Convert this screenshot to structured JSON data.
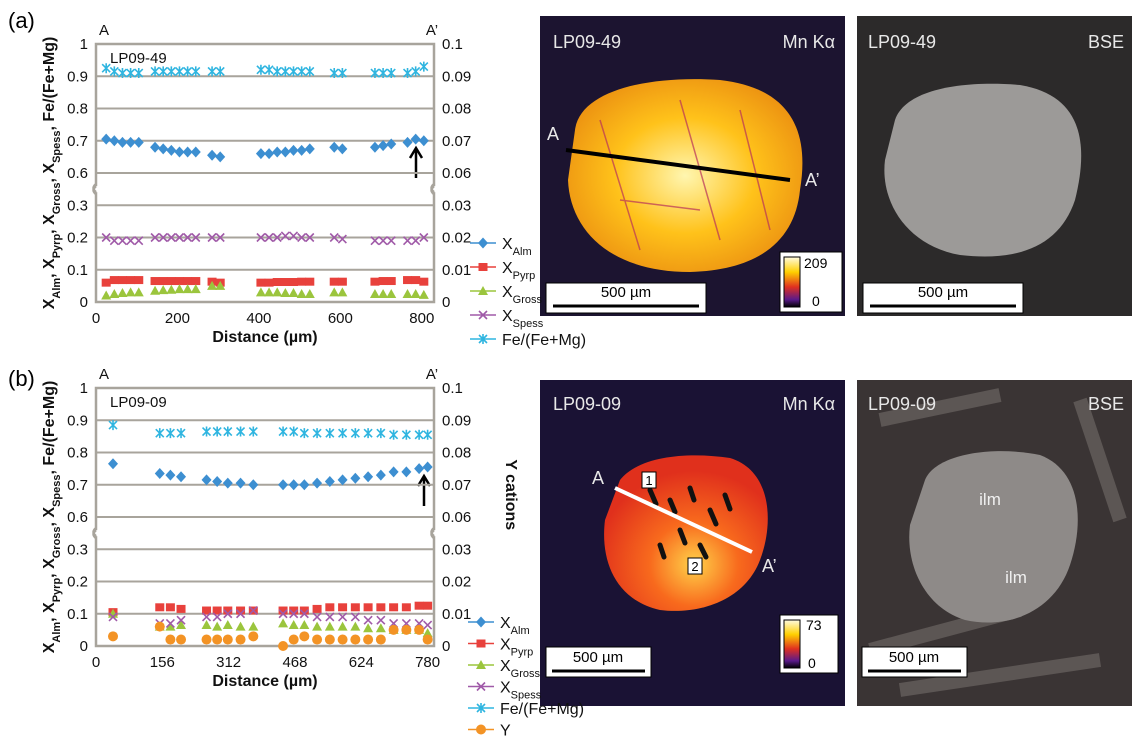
{
  "panel_labels": [
    "(a)",
    "(b)"
  ],
  "chart_data": [
    {
      "type": "scatter",
      "title": "LP09-49",
      "ends": [
        "A",
        "A’"
      ],
      "xlabel": "Distance (µm)",
      "ylabel": [
        [
          "X",
          "Alm"
        ],
        [
          ", X",
          "Pyrp"
        ],
        [
          ", X",
          "Gross"
        ],
        [
          ", X",
          "Spess"
        ],
        [
          ", Fe/(Fe+Mg)"
        ]
      ],
      "xlim": [
        0,
        830
      ],
      "xticks": [
        0,
        200,
        400,
        600,
        800
      ],
      "ylim": [
        0,
        1
      ],
      "ybreak": [
        0.35,
        0.55
      ],
      "yticks": [
        0,
        0.1,
        0.2,
        0.3,
        0.6,
        0.7,
        0.8,
        0.9,
        1
      ],
      "y2lim": [
        0,
        0.1
      ],
      "y2break": [
        0.035,
        0.055
      ],
      "y2ticks": [
        0,
        0.01,
        0.02,
        0.03,
        0.06,
        0.07,
        0.08,
        0.09,
        0.1
      ],
      "grid": true,
      "x": [
        25,
        45,
        65,
        85,
        105,
        145,
        165,
        185,
        205,
        225,
        245,
        285,
        305,
        405,
        425,
        445,
        465,
        485,
        505,
        525,
        585,
        605,
        685,
        705,
        725,
        765,
        785,
        805
      ],
      "series": [
        {
          "name": "X",
          "sub": "Alm",
          "color": "#3d8fd1",
          "marker": "diamond",
          "values": [
            0.705,
            0.7,
            0.695,
            0.695,
            0.695,
            0.68,
            0.675,
            0.67,
            0.665,
            0.665,
            0.665,
            0.655,
            0.65,
            0.66,
            0.66,
            0.665,
            0.665,
            0.67,
            0.67,
            0.675,
            0.68,
            0.675,
            0.68,
            0.685,
            0.69,
            0.695,
            0.705,
            0.7
          ]
        },
        {
          "name": "X",
          "sub": "Pyrp",
          "color": "#e8413c",
          "marker": "square",
          "values": [
            0.06,
            0.068,
            0.068,
            0.068,
            0.068,
            0.065,
            0.065,
            0.065,
            0.065,
            0.065,
            0.065,
            0.063,
            0.06,
            0.06,
            0.06,
            0.062,
            0.062,
            0.062,
            0.063,
            0.063,
            0.063,
            0.063,
            0.063,
            0.065,
            0.065,
            0.068,
            0.068,
            0.063
          ]
        },
        {
          "name": "X",
          "sub": "Gross",
          "color": "#9bc53d",
          "marker": "triangle",
          "values": [
            0.02,
            0.025,
            0.028,
            0.03,
            0.03,
            0.035,
            0.037,
            0.038,
            0.04,
            0.04,
            0.04,
            0.05,
            0.05,
            0.03,
            0.03,
            0.03,
            0.028,
            0.028,
            0.025,
            0.025,
            0.03,
            0.03,
            0.025,
            0.025,
            0.025,
            0.025,
            0.025,
            0.022
          ]
        },
        {
          "name": "X",
          "sub": "Spess",
          "color": "#a05aa8",
          "marker": "cross",
          "values": [
            0.2,
            0.19,
            0.19,
            0.19,
            0.19,
            0.2,
            0.2,
            0.2,
            0.2,
            0.2,
            0.2,
            0.2,
            0.2,
            0.2,
            0.2,
            0.2,
            0.205,
            0.205,
            0.2,
            0.2,
            0.2,
            0.195,
            0.19,
            0.19,
            0.19,
            0.19,
            0.19,
            0.2
          ]
        },
        {
          "name": "Fe/(Fe+Mg)",
          "color": "#2fb5e0",
          "marker": "star",
          "values": [
            0.925,
            0.915,
            0.91,
            0.91,
            0.91,
            0.915,
            0.915,
            0.915,
            0.915,
            0.915,
            0.915,
            0.915,
            0.915,
            0.92,
            0.92,
            0.915,
            0.915,
            0.915,
            0.915,
            0.915,
            0.91,
            0.91,
            0.91,
            0.91,
            0.91,
            0.91,
            0.915,
            0.93
          ]
        }
      ]
    },
    {
      "type": "scatter",
      "title": "LP09-09",
      "ends": [
        "A",
        "A’"
      ],
      "xlabel": "Distance (µm)",
      "y2label": "Y cations",
      "ylabel": [
        [
          "X",
          "Alm"
        ],
        [
          ", X",
          "Pyrp"
        ],
        [
          ", X",
          "Gross"
        ],
        [
          ", X",
          "Spess"
        ],
        [
          ", Fe/(Fe+Mg)"
        ]
      ],
      "xlim": [
        0,
        795
      ],
      "xticks": [
        0,
        156,
        312,
        468,
        624,
        780
      ],
      "ylim": [
        0,
        1
      ],
      "ybreak": [
        0.35,
        0.55
      ],
      "yticks": [
        0,
        0.1,
        0.2,
        0.3,
        0.6,
        0.7,
        0.8,
        0.9,
        1
      ],
      "y2lim": [
        0,
        0.1
      ],
      "y2break": [
        0.035,
        0.055
      ],
      "y2ticks": [
        0,
        0.01,
        0.02,
        0.03,
        0.06,
        0.07,
        0.08,
        0.09,
        0.1
      ],
      "grid": true,
      "x": [
        40,
        150,
        175,
        200,
        260,
        285,
        310,
        340,
        370,
        440,
        465,
        490,
        520,
        550,
        580,
        610,
        640,
        670,
        700,
        730,
        760,
        780
      ],
      "series": [
        {
          "name": "X",
          "sub": "Alm",
          "color": "#3d8fd1",
          "marker": "diamond",
          "values": [
            0.765,
            0.735,
            0.73,
            0.725,
            0.715,
            0.71,
            0.705,
            0.705,
            0.7,
            0.7,
            0.7,
            0.7,
            0.705,
            0.71,
            0.715,
            0.72,
            0.725,
            0.73,
            0.74,
            0.74,
            0.75,
            0.755
          ]
        },
        {
          "name": "X",
          "sub": "Pyrp",
          "color": "#e8413c",
          "marker": "square",
          "values": [
            0.105,
            0.12,
            0.12,
            0.115,
            0.11,
            0.11,
            0.11,
            0.11,
            0.11,
            0.11,
            0.11,
            0.11,
            0.115,
            0.12,
            0.12,
            0.12,
            0.12,
            0.12,
            0.12,
            0.12,
            0.125,
            0.125
          ]
        },
        {
          "name": "X",
          "sub": "Gross",
          "color": "#9bc53d",
          "marker": "triangle",
          "values": [
            0.1,
            0.06,
            0.06,
            0.065,
            0.065,
            0.06,
            0.065,
            0.06,
            0.06,
            0.07,
            0.065,
            0.065,
            0.06,
            0.06,
            0.06,
            0.06,
            0.055,
            0.055,
            0.05,
            0.05,
            0.05,
            0.04
          ]
        },
        {
          "name": "X",
          "sub": "Spess",
          "color": "#a05aa8",
          "marker": "cross",
          "values": [
            0.09,
            0.07,
            0.07,
            0.08,
            0.09,
            0.09,
            0.1,
            0.1,
            0.11,
            0.1,
            0.1,
            0.1,
            0.09,
            0.09,
            0.09,
            0.09,
            0.08,
            0.08,
            0.07,
            0.07,
            0.07,
            0.065
          ]
        },
        {
          "name": "Fe/(Fe+Mg)",
          "color": "#2fb5e0",
          "marker": "star",
          "values": [
            0.885,
            0.86,
            0.86,
            0.86,
            0.865,
            0.865,
            0.865,
            0.865,
            0.865,
            0.865,
            0.865,
            0.86,
            0.86,
            0.86,
            0.86,
            0.86,
            0.86,
            0.86,
            0.855,
            0.855,
            0.855,
            0.855
          ]
        },
        {
          "name": "Y",
          "color": "#f39325",
          "marker": "circle",
          "axis": "y2",
          "values": [
            0.003,
            0.006,
            0.002,
            0.002,
            0.002,
            0.002,
            0.002,
            0.002,
            0.003,
            0,
            0.002,
            0.003,
            0.002,
            0.002,
            0.002,
            0.002,
            0.002,
            0.002,
            0.005,
            0.005,
            0.005,
            0.002
          ]
        }
      ]
    }
  ],
  "images": [
    {
      "sample": "LP09-49",
      "map": "Mn Kα",
      "ends": [
        "A",
        "A’"
      ],
      "colorbar": [
        "209",
        "0"
      ],
      "scale": "500 µm"
    },
    {
      "sample": "LP09-49",
      "map": "BSE",
      "scale": "500 µm"
    },
    {
      "sample": "LP09-09",
      "map": "Mn Kα",
      "ends": [
        "A",
        "A’"
      ],
      "markers": [
        "1",
        "2"
      ],
      "colorbar": [
        "73",
        "0"
      ],
      "scale": "500 µm"
    },
    {
      "sample": "LP09-09",
      "map": "BSE",
      "labels": [
        "ilm",
        "ilm"
      ],
      "scale": "500 µm"
    }
  ]
}
